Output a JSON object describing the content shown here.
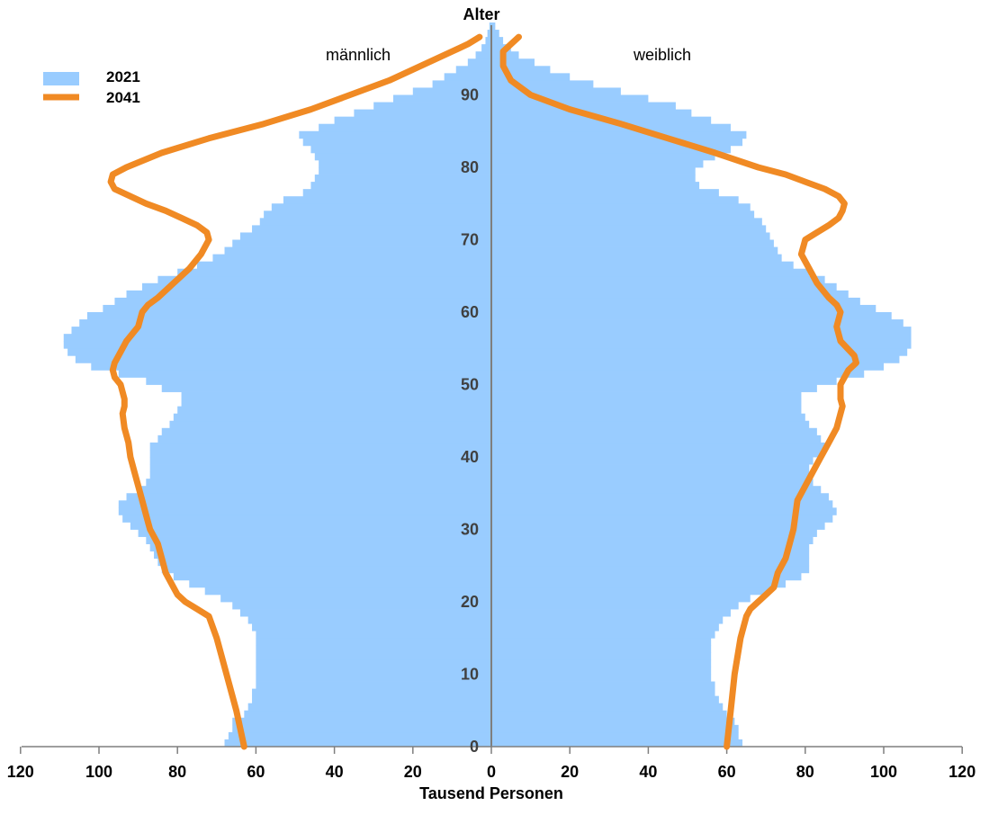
{
  "chart_data": {
    "type": "bar",
    "subtype": "population-pyramid",
    "ylabel": "Alter",
    "xlabel": "Tausend Personen",
    "left_label": "männlich",
    "right_label": "weiblich",
    "xlim": [
      0,
      120
    ],
    "x_ticks": [
      120,
      100,
      80,
      60,
      40,
      20,
      0,
      20,
      40,
      60,
      80,
      100,
      120
    ],
    "ylim": [
      0,
      99
    ],
    "y_ticks": [
      0,
      10,
      20,
      30,
      40,
      50,
      60,
      70,
      80,
      90
    ],
    "legend_position": "top-left",
    "colors": {
      "bars_2021": "#99ccff",
      "line_2041": "#f08a24",
      "axis": "#7f7f7f"
    },
    "series": [
      {
        "name": "2021",
        "kind": "bars",
        "ages": [
          0,
          1,
          2,
          3,
          4,
          5,
          6,
          7,
          8,
          9,
          10,
          11,
          12,
          13,
          14,
          15,
          16,
          17,
          18,
          19,
          20,
          21,
          22,
          23,
          24,
          25,
          26,
          27,
          28,
          29,
          30,
          31,
          32,
          33,
          34,
          35,
          36,
          37,
          38,
          39,
          40,
          41,
          42,
          43,
          44,
          45,
          46,
          47,
          48,
          49,
          50,
          51,
          52,
          53,
          54,
          55,
          56,
          57,
          58,
          59,
          60,
          61,
          62,
          63,
          64,
          65,
          66,
          67,
          68,
          69,
          70,
          71,
          72,
          73,
          74,
          75,
          76,
          77,
          78,
          79,
          80,
          81,
          82,
          83,
          84,
          85,
          86,
          87,
          88,
          89,
          90,
          91,
          92,
          93,
          94,
          95,
          96,
          97,
          98,
          99
        ],
        "male": [
          68,
          67,
          66,
          66,
          63,
          62,
          61,
          61,
          60,
          60,
          60,
          60,
          60,
          60,
          60,
          60,
          61,
          62,
          64,
          66,
          69,
          73,
          77,
          81,
          84,
          85,
          86,
          87,
          88,
          90,
          92,
          94,
          95,
          95,
          93,
          90,
          88,
          87,
          87,
          87,
          87,
          87,
          85,
          84,
          82,
          81,
          80,
          79,
          79,
          84,
          88,
          95,
          102,
          106,
          108,
          109,
          109,
          107,
          105,
          103,
          99,
          96,
          93,
          89,
          85,
          80,
          75,
          71,
          68,
          66,
          64,
          61,
          59,
          58,
          56,
          53,
          48,
          46,
          45,
          44,
          44,
          45,
          46,
          48,
          49,
          44,
          40,
          35,
          30,
          25,
          20,
          15,
          12,
          9,
          6,
          4,
          2.5,
          1.5,
          1,
          0.5
        ],
        "female": [
          64,
          63,
          63,
          62,
          60,
          59,
          58,
          57,
          57,
          56,
          56,
          56,
          56,
          56,
          56,
          57,
          58,
          59,
          61,
          63,
          66,
          71,
          75,
          79,
          81,
          81,
          81,
          81,
          82,
          83,
          85,
          87,
          88,
          87,
          86,
          84,
          82,
          81,
          81,
          82,
          84,
          85,
          84,
          83,
          81,
          80,
          79,
          79,
          79,
          83,
          88,
          95,
          100,
          104,
          106,
          107,
          107,
          107,
          105,
          102,
          98,
          94,
          91,
          88,
          85,
          81,
          77,
          74,
          73,
          72,
          71,
          70,
          69,
          67,
          66,
          63,
          58,
          53,
          52,
          52,
          54,
          57,
          61,
          64,
          65,
          61,
          56,
          51,
          47,
          40,
          33,
          26,
          20,
          15,
          11,
          7,
          5,
          3,
          2,
          1
        ]
      },
      {
        "name": "2041",
        "kind": "line",
        "ages": [
          0,
          5,
          10,
          15,
          18,
          19,
          20,
          21,
          22,
          24,
          26,
          28,
          30,
          32,
          34,
          36,
          38,
          40,
          42,
          44,
          46,
          47,
          48,
          50,
          51,
          52,
          53,
          54,
          56,
          58,
          60,
          61,
          62,
          64,
          66,
          68,
          70,
          71,
          72,
          73,
          74,
          75,
          76,
          77,
          78,
          79,
          80,
          82,
          84,
          86,
          88,
          90,
          92,
          94,
          96,
          97,
          98
        ],
        "male": [
          63,
          65,
          67.5,
          70,
          72,
          75,
          78,
          80,
          81,
          83,
          84,
          85,
          87,
          88,
          89,
          90,
          91,
          92,
          92.5,
          93.5,
          94,
          93.5,
          93.5,
          94.5,
          96,
          96.5,
          96,
          95,
          93,
          90,
          89,
          87.5,
          85,
          81,
          77,
          74,
          72,
          72.5,
          75,
          79,
          83,
          88,
          92,
          96,
          97,
          96.5,
          93,
          84,
          72,
          58,
          46,
          36,
          26,
          18,
          10,
          6,
          3
        ],
        "female": [
          60,
          61,
          62,
          63.5,
          65,
          66,
          68,
          70,
          72,
          73,
          75,
          76,
          77,
          77.5,
          78,
          80,
          82,
          84,
          86,
          88,
          89,
          89.5,
          89,
          89,
          90,
          91,
          93,
          92.5,
          89,
          88,
          89,
          88,
          86,
          83,
          81,
          79,
          80,
          83,
          86,
          88.5,
          89.5,
          90,
          88.5,
          85,
          80,
          75,
          68,
          57,
          45,
          33,
          20,
          10,
          5,
          3,
          3,
          5,
          7
        ]
      }
    ]
  }
}
